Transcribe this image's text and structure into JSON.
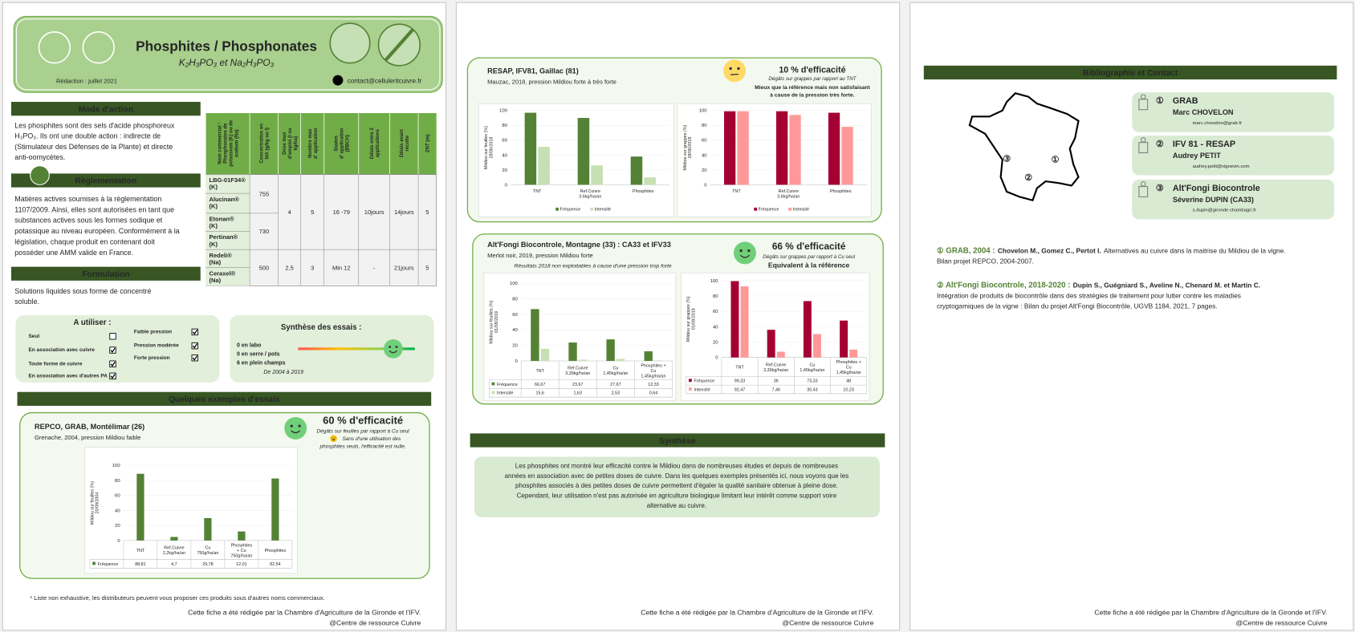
{
  "page1": {
    "header": {
      "title": "Phosphites / Phosphonates",
      "formula": "K₂H₃PO₃ et Na₂H₃PO₃",
      "date": "Rédaction : juillet 2021",
      "email": "contact@celluleritcuivre.fr"
    },
    "mode_action": {
      "title": "Mode d'action",
      "lines": [
        "Les phosphites sont des sels d'acide phosphoreux",
        "H₃PO₃. Ils ont une double action : indirecte de",
        "(Stimulateur des Défenses de la Plante) et directe",
        "anti-oomycètes."
      ]
    },
    "reglementation": {
      "title": "Règlementation",
      "lines": [
        "Matières actives soumises à la règlementation",
        "1107/2009. Ainsi, elles sont autorisées en tant que",
        "substances actives sous les formes sodique et",
        "potassique au niveau européen. Conformément à la",
        "législation, chaque produit en contenant doit",
        "posséder une AMM valide en France."
      ]
    },
    "formulation": {
      "title": "Formulation",
      "lines": [
        "Solutions liquides sous forme de concentré",
        "soluble."
      ]
    },
    "table": {
      "header": [
        [
          "Nom commercial ¹",
          "Phosphonates de",
          "potassium (K) ou de",
          "sodium (Na)"
        ],
        [
          "Concentration en",
          "MA (g/kg ou l)"
        ],
        [
          "Dose max",
          "d'emploi (l ou",
          "kg/ha)"
        ],
        [
          "Nombre max",
          "d' application"
        ],
        [
          "Stades",
          "d' application",
          "(BBCH)"
        ],
        [
          "Délais entre 2",
          "applications"
        ],
        [
          "Délais avant",
          "récolte"
        ],
        [
          "ZNT (m)"
        ]
      ],
      "names": [
        [
          "LBG-01F34®",
          "(K)"
        ],
        [
          "Alucinan®",
          "(K)"
        ],
        [
          "Etonan®",
          "(K)"
        ],
        [
          "Pertinan®",
          "(K)"
        ],
        [
          "Redeli®",
          "(Na)"
        ],
        [
          "Ceraxel®",
          "(Na)"
        ]
      ],
      "concentration": [
        "755",
        "730",
        "500"
      ],
      "conditions": [
        [
          "4",
          "5",
          "16 -79",
          "10jours",
          "14jours",
          "5"
        ],
        [
          "2,5",
          "3",
          "Min 12",
          "-",
          "21jours",
          "5"
        ]
      ]
    },
    "usage": {
      "title": "A utiliser :",
      "left": [
        {
          "label": "Seul",
          "checked": false
        },
        {
          "label": "En association avec cuivre",
          "checked": true
        },
        {
          "label": "Toute forme de cuivre",
          "checked": true
        },
        {
          "label": "En association avec d'autres PA",
          "checked": true
        }
      ],
      "right": [
        {
          "label": "Faible pression",
          "checked": true
        },
        {
          "label": "Pression modérée",
          "checked": true
        },
        {
          "label": "Forte pression",
          "checked": true
        }
      ]
    },
    "synthese": {
      "title": "Synthèse des essais :",
      "lines": [
        "0 en labo",
        "0 en serre / pots",
        "6 en plein champs"
      ],
      "period": "De 2004 à 2019"
    },
    "examples_title": "Quelques exemples d'essais",
    "trial": {
      "title": "REPCO, GRAB, Montélimar (26)",
      "subtitle": "Grenache, 2004, pression Mildiou faible",
      "efficacy": "60 % d'efficacité",
      "notes": [
        "Dégâts sur feuilles par rapport à Cu seul",
        "Sans d'une utilisation des",
        "phosphites seuls, l'efficacité est nulle."
      ]
    },
    "footnote": "¹ Liste non exhaustive, les distributeurs peuvent vous proposer ces produits sous d'autres noms commerciaux.",
    "footer": [
      "Cette fiche a été rédigée par la Chambre d'Agriculture de la Gironde et l'IFV.",
      "@Centre de ressource Cuivre"
    ]
  },
  "page2": {
    "trial1": {
      "title": "RESAP, IFV81, Gaillac (81)",
      "subtitle": "Mauzac, 2018, pression Mildiou forte à très forte",
      "efficacy": "10 % d'efficacité",
      "notes": [
        "Dégâts sur grappes par rapport au TNT",
        "Mieux que la référence mais non satisfaisant",
        "à cause de la pression très forte."
      ]
    },
    "trial2": {
      "title": "Alt'Fongi Biocontrole, Montagne (33) : CA33 et IFV33",
      "subtitle": "Merlot noir, 2019, pression Mildiou forte",
      "note": "Résultats 2018 non exploitables à cause d'une pression trop forte",
      "efficacy": "66 % d'efficacité",
      "notes": [
        "Dégâts sur grappes par rapport à Cu seul",
        "Equivalent à la référence"
      ]
    },
    "synthese": {
      "title": "Synthèse",
      "lines": [
        "Les phosphites ont montré leur efficacité contre le Mildiou dans de nombreuses études et depuis de nombreuses",
        "années en association avec de petites doses de cuivre. Dans les quelques exemples présentés ici, nous voyons que les",
        "phosphites associés à des petites doses de cuivre permettent d'égaler la qualité sanitaire obtenue à pleine dose.",
        "Cependant, leur utilisation n'est pas autorisée en agriculture biologique limitant leur intérêt comme support voire",
        "alternative au cuivre."
      ]
    },
    "footer": [
      "Cette fiche a été rédigée par la Chambre d'Agriculture de la Gironde et l'IFV.",
      "@Centre de ressource Cuivre"
    ]
  },
  "page3": {
    "title": "Bibliographie et Contact",
    "map_markers": [
      "①",
      "②",
      "③"
    ],
    "contacts": [
      {
        "number": "①",
        "org": "GRAB",
        "name": "Marc CHOVELON",
        "email": "marc.chovelon@grab.fr"
      },
      {
        "number": "②",
        "org": "IFV 81 - RESAP",
        "name": "Audrey PETIT",
        "email": "audrey.petit@vignevin.com"
      },
      {
        "number": "③",
        "org": "Alt'Fongi Biocontrole",
        "name": "Séverine DUPIN (CA33)",
        "email": "s.dupin@gironde.chambagri.fr"
      }
    ],
    "references": [
      {
        "head": "① GRAB, 2004 :",
        "authors": "Chovelon M., Gomez C., Pertot I.",
        "title": "Alternatives au cuivre dans la maitrise du Mildiou de la vigne.",
        "lines": [
          "Bilan projet REPCO, 2004-2007."
        ]
      },
      {
        "head": "② Alt'Fongi Biocontrole, 2018-2020 :",
        "authors": "Dupin S., Guégniard S., Aveline N., Chenard M. et Martin C.",
        "title": "",
        "lines": [
          "Intégration de produits de biocontrôle dans des stratégies de traitement pour lutter contre les maladies",
          "cryptogamiques de la vigne : Bilan du projet Alt'Fongi Biocontrôle, UGVB 1184, 2021, 7 pages."
        ]
      }
    ],
    "footer": [
      "Cette fiche a été rédigée par la Chambre d'Agriculture de la Gironde et l'IFV.",
      "@Centre de ressource Cuivre"
    ]
  },
  "chart_data": [
    {
      "type": "bar",
      "y_label": [
        "Mildiou sur feuilles (%)",
        "20/09/2004"
      ],
      "categories": [
        [
          "TNT"
        ],
        [
          "Ref.Cuivre",
          "2,2kg/ha/an"
        ],
        [
          "Cu",
          "750g/ha/an"
        ],
        [
          "Phosphites",
          "+ Cu",
          "750g/ha/an"
        ],
        [
          "Phosphites"
        ]
      ],
      "series": [
        {
          "name": "Fréquence",
          "color": "#548235",
          "values": [
            88.81,
            4.7,
            29.78,
            12.01,
            82.54
          ],
          "value_labels": [
            "88,81",
            "4,7",
            "29,78",
            "12,01",
            "82,54"
          ]
        }
      ],
      "ylim": [
        0,
        100
      ],
      "yticks": [
        0,
        20,
        40,
        60,
        80,
        100
      ]
    },
    {
      "type": "bar",
      "y_label": [
        "Mildiou sur feuilles (%)",
        "28/06/2018"
      ],
      "categories": [
        [
          "TNT"
        ],
        [
          "Ref.Cuivre",
          "3,6kg/ha/an"
        ],
        [
          "Phosphites"
        ]
      ],
      "series": [
        {
          "name": "Fréquence",
          "color": "#548235",
          "values": [
            97,
            90,
            38
          ]
        },
        {
          "name": "Intensité",
          "color": "#c5e0b4",
          "values": [
            51,
            26,
            10
          ]
        }
      ],
      "ylim": [
        0,
        100
      ],
      "yticks": [
        0,
        20,
        40,
        60,
        80,
        100
      ]
    },
    {
      "type": "bar",
      "y_label": [
        "Mildiou sur grappes (%)",
        "28/06/2018"
      ],
      "categories": [
        [
          "TNT"
        ],
        [
          "Ref.Cuivre",
          "3,6kg/ha/an"
        ],
        [
          "Phosphites"
        ]
      ],
      "series": [
        {
          "name": "Fréquence",
          "color": "#a50034",
          "values": [
            99,
            99,
            97
          ]
        },
        {
          "name": "Intensité",
          "color": "#ff9999",
          "values": [
            99,
            94,
            78
          ]
        }
      ],
      "ylim": [
        0,
        100
      ],
      "yticks": [
        0,
        20,
        40,
        60,
        80,
        100
      ]
    },
    {
      "type": "bar",
      "y_label": [
        "Mildiou sur feuilles (%)",
        "01/08/2019"
      ],
      "categories": [
        [
          "TNT"
        ],
        [
          "Ref.Cuivre",
          "3,39kg/ha/an"
        ],
        [
          "Cu",
          "1,45kg/ha/an"
        ],
        [
          "Phosphites +",
          "Cu",
          "1,45kg/ha/an"
        ]
      ],
      "series": [
        {
          "name": "Fréquence",
          "color": "#548235",
          "values": [
            66.67,
            23.67,
            27.67,
            12.33
          ],
          "value_labels": [
            "66,67",
            "23,67",
            "27,67",
            "12,33"
          ]
        },
        {
          "name": "Intensité",
          "color": "#c5e0b4",
          "values": [
            15.6,
            1.63,
            2.53,
            0.64
          ],
          "value_labels": [
            "15,6",
            "1,63",
            "2,53",
            "0,64"
          ]
        }
      ],
      "ylim": [
        0,
        100
      ],
      "yticks": [
        0,
        20,
        40,
        60,
        80,
        100
      ]
    },
    {
      "type": "bar",
      "y_label": [
        "Mildiou sur grappes (%)",
        "01/08/2019"
      ],
      "categories": [
        [
          "TNT"
        ],
        [
          "Ref.Cuivre",
          "3,39kg/ha/an"
        ],
        [
          "Cu",
          "1,45kg/ha/an"
        ],
        [
          "Phosphites +",
          "Cu",
          "1,45kg/ha/an"
        ]
      ],
      "series": [
        {
          "name": "Fréquence",
          "color": "#a50034",
          "values": [
            99.33,
            36,
            73.33,
            48
          ],
          "value_labels": [
            "99,33",
            "36",
            "73,33",
            "48"
          ]
        },
        {
          "name": "Intensité",
          "color": "#ff9999",
          "values": [
            92.47,
            7.46,
            30.43,
            10.23
          ],
          "value_labels": [
            "92,47",
            "7,46",
            "30,43",
            "10,23"
          ]
        }
      ],
      "ylim": [
        0,
        100
      ],
      "yticks": [
        0,
        20,
        40,
        60,
        80,
        100
      ]
    }
  ]
}
